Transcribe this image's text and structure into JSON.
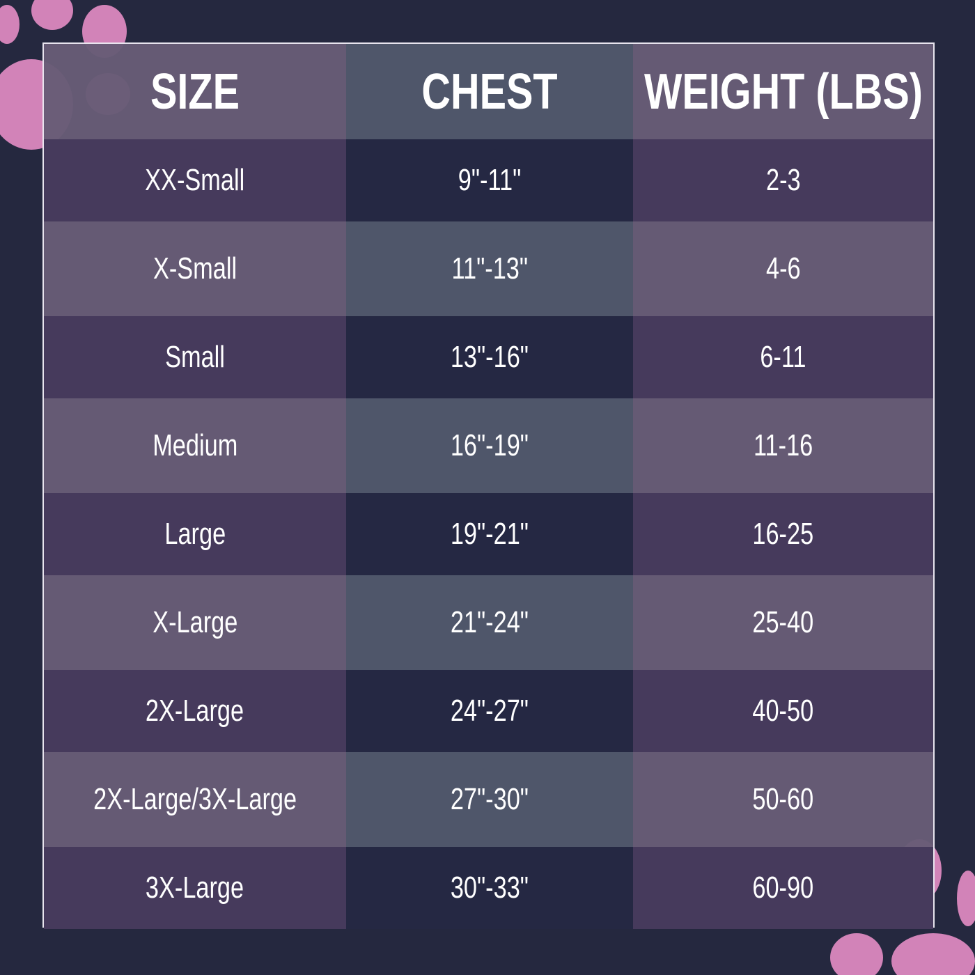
{
  "colors": {
    "background": "#25283f",
    "paw": "#d283b8",
    "header_cell": "#675c76",
    "header_mid": "#4f566a",
    "dark_row": "#463a5c",
    "dark_mid": "#252843"
  },
  "headers": [
    "SIZE",
    "CHEST",
    "WEIGHT (LBS)"
  ],
  "rows": [
    [
      "XX-Small",
      "9\"-11\"",
      "2-3"
    ],
    [
      "X-Small",
      "11\"-13\"",
      "4-6"
    ],
    [
      "Small",
      "13\"-16\"",
      "6-11"
    ],
    [
      "Medium",
      "16\"-19\"",
      "11-16"
    ],
    [
      "Large",
      "19\"-21\"",
      "16-25"
    ],
    [
      "X-Large",
      "21\"-24\"",
      "25-40"
    ],
    [
      "2X-Large",
      "24\"-27\"",
      "40-50"
    ],
    [
      "2X-Large/3X-Large",
      "27\"-30\"",
      "50-60"
    ],
    [
      "3X-Large",
      "30\"-33\"",
      "60-90"
    ]
  ]
}
